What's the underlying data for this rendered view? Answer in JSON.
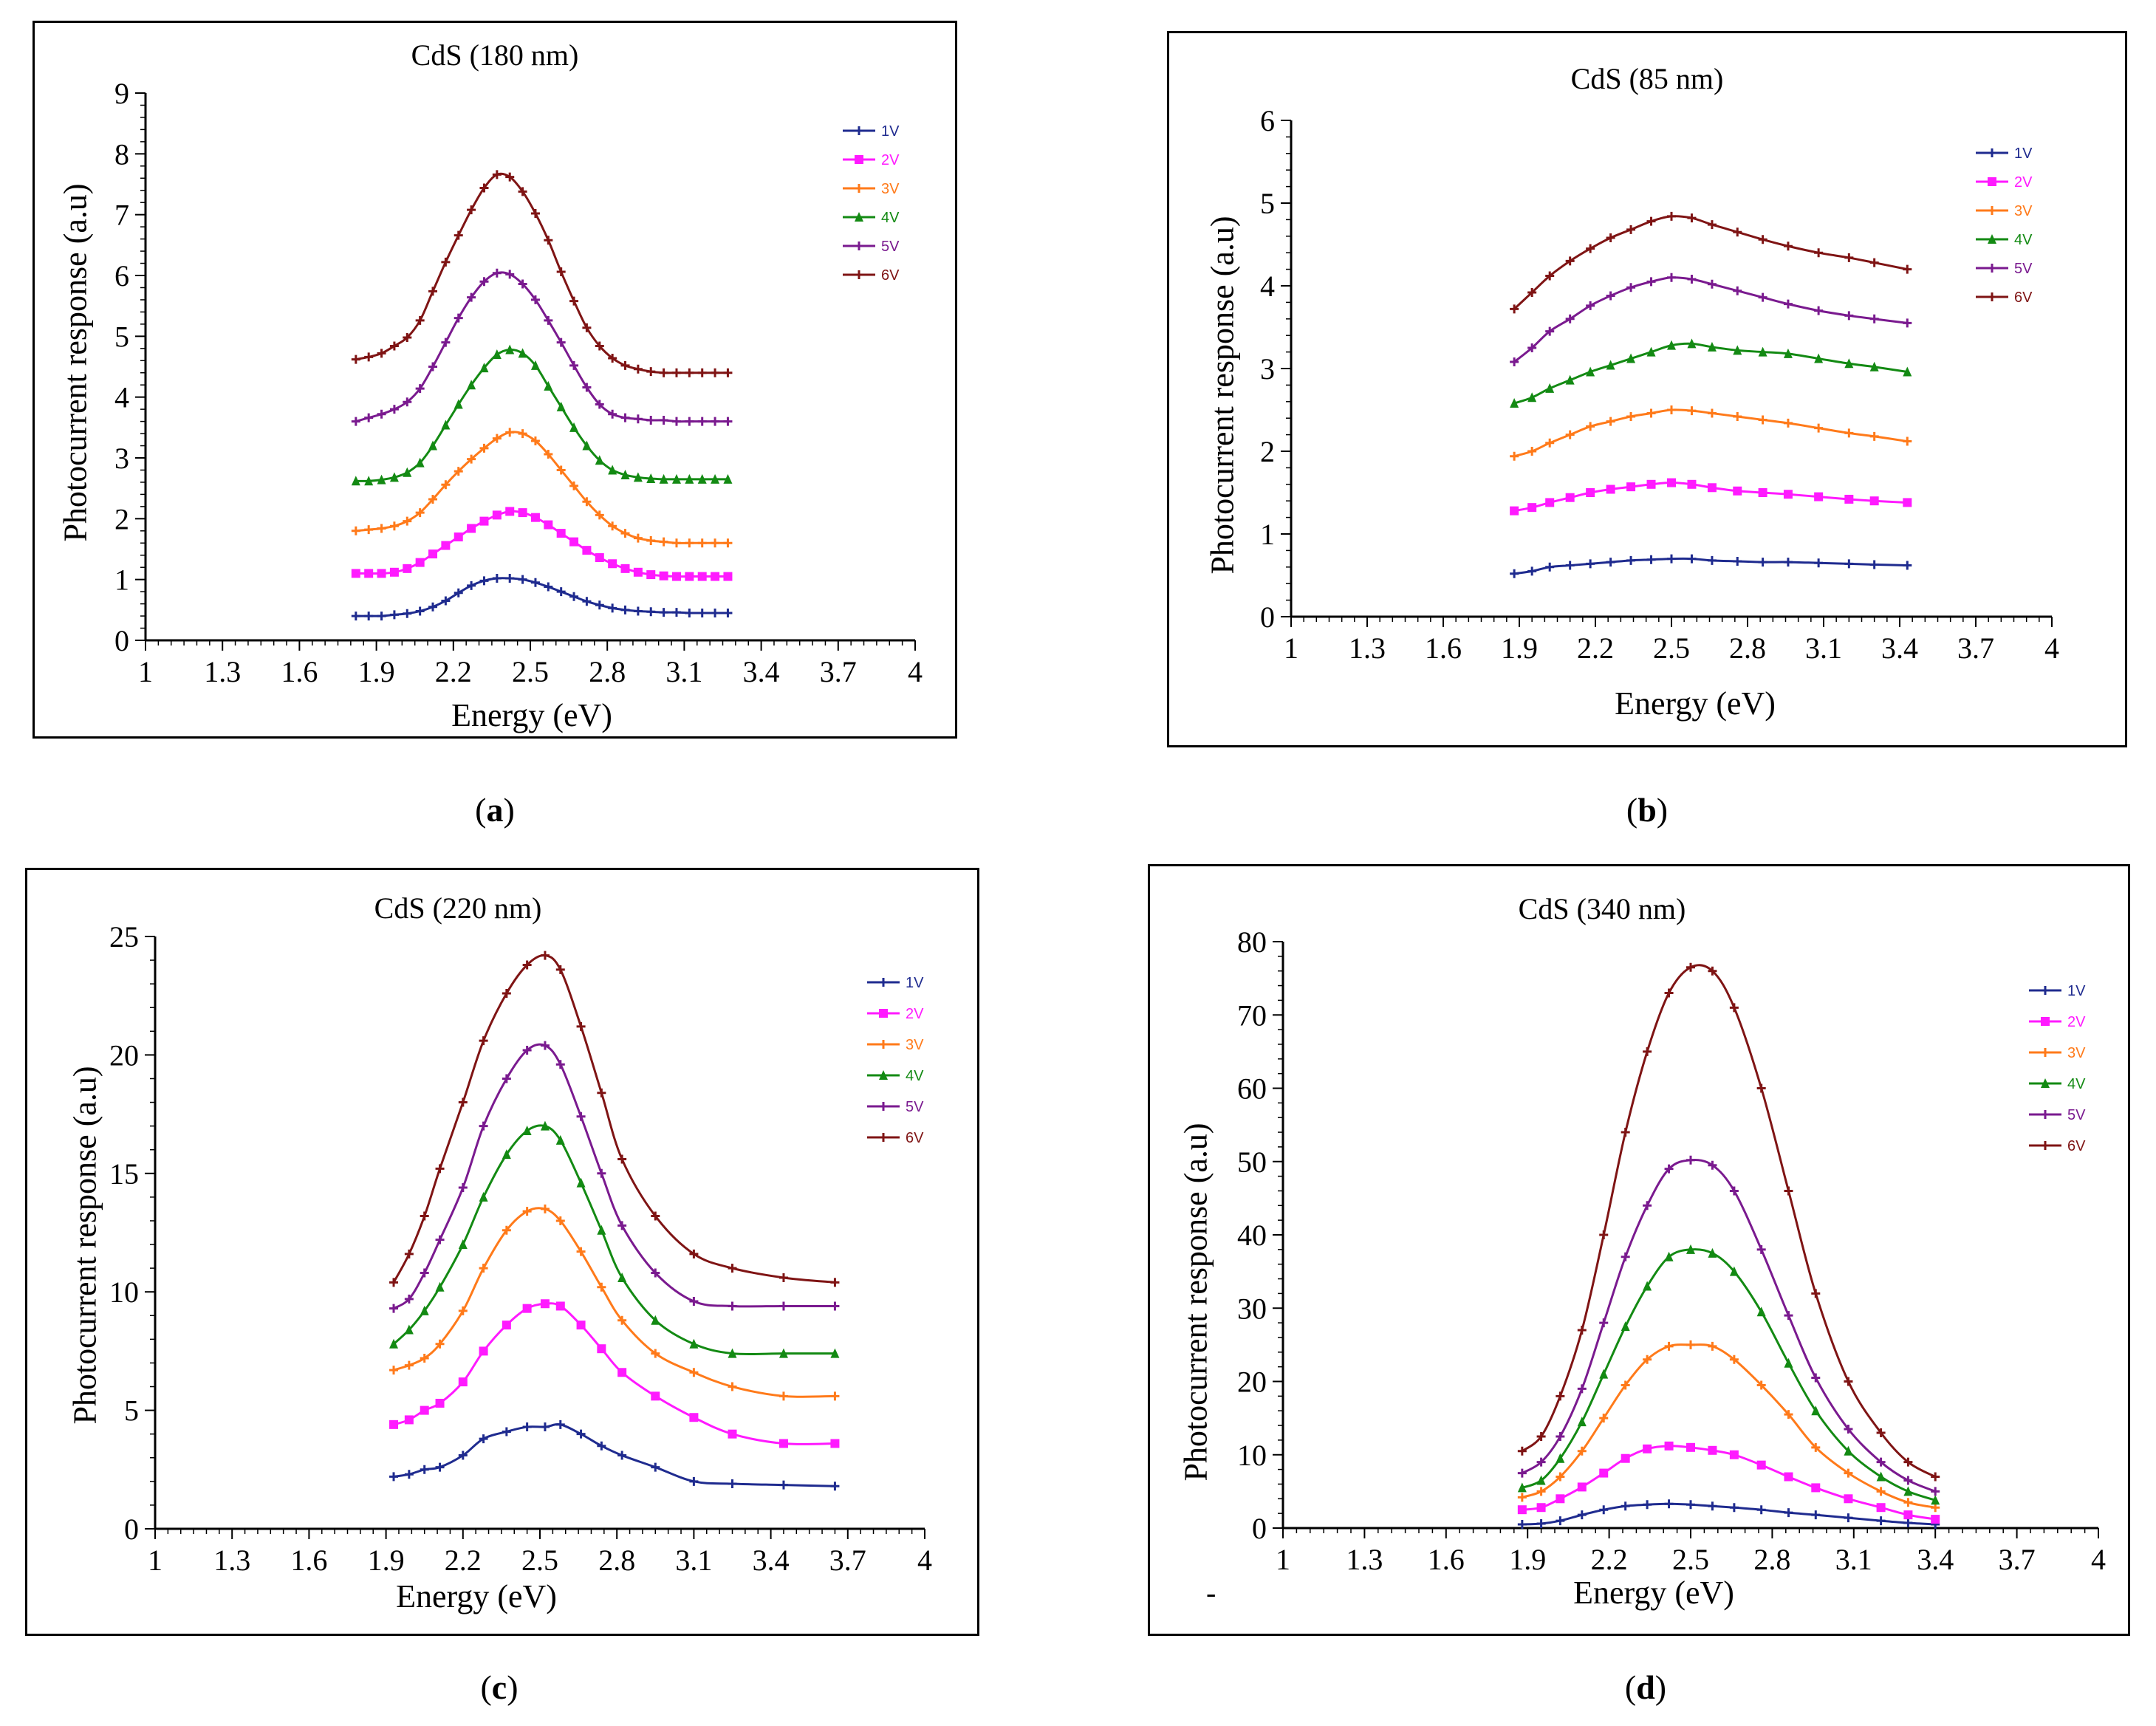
{
  "figure": {
    "panels": [
      {
        "caption_open": "(",
        "caption_letter": "a",
        "caption_close": ")",
        "ylabel": "Photocurrent response (a.u)",
        "xlabel": "Energy (eV)",
        "chart_data": {
          "type": "line",
          "title": "CdS (180 nm)",
          "xlabel": "Energy (eV)",
          "ylabel": "Photocurrent response (a.u)",
          "xlim": [
            1,
            4
          ],
          "ylim": [
            0,
            9
          ],
          "xticks": [
            "1",
            "1.3",
            "1.6",
            "1.9",
            "2.2",
            "2.5",
            "2.8",
            "3.1",
            "3.4",
            "3.7",
            "4"
          ],
          "yticks": [
            "0",
            "1",
            "2",
            "3",
            "4",
            "5",
            "6",
            "7",
            "8",
            "9"
          ],
          "grid": false,
          "legend_position": "top-right",
          "x": [
            1.82,
            1.87,
            1.92,
            1.97,
            2.02,
            2.07,
            2.12,
            2.17,
            2.22,
            2.27,
            2.32,
            2.37,
            2.42,
            2.47,
            2.52,
            2.57,
            2.62,
            2.67,
            2.72,
            2.77,
            2.82,
            2.87,
            2.92,
            2.97,
            3.02,
            3.07,
            3.12,
            3.17,
            3.22,
            3.27
          ],
          "series": [
            {
              "name": "1V",
              "color": "#1f2b8f",
              "values": [
                0.4,
                0.4,
                0.4,
                0.42,
                0.44,
                0.48,
                0.55,
                0.65,
                0.78,
                0.9,
                0.98,
                1.02,
                1.02,
                1.0,
                0.95,
                0.88,
                0.8,
                0.72,
                0.64,
                0.58,
                0.53,
                0.5,
                0.48,
                0.47,
                0.46,
                0.46,
                0.45,
                0.45,
                0.45,
                0.45
              ]
            },
            {
              "name": "2V",
              "color": "#ff1aff",
              "values": [
                1.1,
                1.1,
                1.1,
                1.12,
                1.18,
                1.28,
                1.42,
                1.56,
                1.7,
                1.84,
                1.96,
                2.06,
                2.12,
                2.1,
                2.02,
                1.9,
                1.76,
                1.62,
                1.48,
                1.36,
                1.26,
                1.18,
                1.12,
                1.08,
                1.06,
                1.05,
                1.05,
                1.05,
                1.05,
                1.05
              ]
            },
            {
              "name": "3V",
              "color": "#ff7a1a",
              "values": [
                1.8,
                1.82,
                1.84,
                1.88,
                1.96,
                2.1,
                2.32,
                2.56,
                2.78,
                2.98,
                3.16,
                3.32,
                3.42,
                3.4,
                3.28,
                3.06,
                2.8,
                2.54,
                2.28,
                2.06,
                1.88,
                1.76,
                1.68,
                1.64,
                1.62,
                1.6,
                1.6,
                1.6,
                1.6,
                1.6
              ]
            },
            {
              "name": "4V",
              "color": "#138a13",
              "values": [
                2.62,
                2.62,
                2.64,
                2.68,
                2.76,
                2.92,
                3.2,
                3.54,
                3.88,
                4.2,
                4.48,
                4.7,
                4.78,
                4.72,
                4.52,
                4.18,
                3.84,
                3.5,
                3.2,
                2.96,
                2.8,
                2.72,
                2.68,
                2.66,
                2.65,
                2.65,
                2.65,
                2.65,
                2.65,
                2.65
              ]
            },
            {
              "name": "5V",
              "color": "#7a1a8f",
              "values": [
                3.6,
                3.66,
                3.72,
                3.8,
                3.92,
                4.14,
                4.5,
                4.9,
                5.3,
                5.64,
                5.9,
                6.04,
                6.02,
                5.86,
                5.6,
                5.26,
                4.9,
                4.52,
                4.16,
                3.88,
                3.72,
                3.66,
                3.64,
                3.62,
                3.62,
                3.6,
                3.6,
                3.6,
                3.6,
                3.6
              ]
            },
            {
              "name": "6V",
              "color": "#7f1414",
              "values": [
                4.62,
                4.66,
                4.72,
                4.84,
                4.98,
                5.26,
                5.74,
                6.22,
                6.66,
                7.08,
                7.44,
                7.66,
                7.62,
                7.38,
                7.02,
                6.58,
                6.06,
                5.58,
                5.14,
                4.84,
                4.64,
                4.52,
                4.46,
                4.42,
                4.4,
                4.4,
                4.4,
                4.4,
                4.4,
                4.4
              ]
            }
          ]
        }
      },
      {
        "caption_open": "(",
        "caption_letter": "b",
        "caption_close": ")",
        "ylabel": "Photocurrent response (a.u)",
        "xlabel": "Energy (eV)",
        "chart_data": {
          "type": "line",
          "title": "CdS (85 nm)",
          "xlabel": "Energy (eV)",
          "ylabel": "Photocurrent response (a.u)",
          "xlim": [
            1,
            4
          ],
          "ylim": [
            0,
            6
          ],
          "xticks": [
            "1",
            "1.3",
            "1.6",
            "1.9",
            "2.2",
            "2.5",
            "2.8",
            "3.1",
            "3.4",
            "3.7",
            "4"
          ],
          "yticks": [
            "0",
            "1",
            "2",
            "3",
            "4",
            "5",
            "6"
          ],
          "grid": false,
          "legend_position": "top-right",
          "x": [
            1.88,
            1.95,
            2.02,
            2.1,
            2.18,
            2.26,
            2.34,
            2.42,
            2.5,
            2.58,
            2.66,
            2.76,
            2.86,
            2.96,
            3.08,
            3.2,
            3.3,
            3.43
          ],
          "series": [
            {
              "name": "1V",
              "color": "#1f2b8f",
              "values": [
                0.52,
                0.55,
                0.6,
                0.62,
                0.64,
                0.66,
                0.68,
                0.69,
                0.7,
                0.7,
                0.68,
                0.67,
                0.66,
                0.66,
                0.65,
                0.64,
                0.63,
                0.62
              ]
            },
            {
              "name": "2V",
              "color": "#ff1aff",
              "values": [
                1.28,
                1.32,
                1.38,
                1.44,
                1.5,
                1.54,
                1.57,
                1.6,
                1.62,
                1.6,
                1.56,
                1.52,
                1.5,
                1.48,
                1.45,
                1.42,
                1.4,
                1.38
              ]
            },
            {
              "name": "3V",
              "color": "#ff7a1a",
              "values": [
                1.94,
                2.0,
                2.1,
                2.2,
                2.3,
                2.36,
                2.42,
                2.46,
                2.5,
                2.49,
                2.46,
                2.42,
                2.38,
                2.34,
                2.28,
                2.22,
                2.18,
                2.12
              ]
            },
            {
              "name": "4V",
              "color": "#138a13",
              "values": [
                2.58,
                2.65,
                2.76,
                2.86,
                2.96,
                3.04,
                3.12,
                3.2,
                3.28,
                3.3,
                3.26,
                3.22,
                3.2,
                3.18,
                3.12,
                3.06,
                3.02,
                2.96
              ]
            },
            {
              "name": "5V",
              "color": "#7a1a8f",
              "values": [
                3.08,
                3.25,
                3.45,
                3.6,
                3.76,
                3.88,
                3.98,
                4.05,
                4.1,
                4.08,
                4.02,
                3.94,
                3.86,
                3.78,
                3.7,
                3.64,
                3.6,
                3.55
              ]
            },
            {
              "name": "6V",
              "color": "#7f1414",
              "values": [
                3.72,
                3.92,
                4.12,
                4.3,
                4.45,
                4.58,
                4.68,
                4.78,
                4.84,
                4.82,
                4.74,
                4.65,
                4.56,
                4.48,
                4.4,
                4.34,
                4.28,
                4.2
              ]
            }
          ]
        }
      },
      {
        "caption_open": "(",
        "caption_letter": "c",
        "caption_close": ")",
        "ylabel": "Photocurrent response (a.u)",
        "xlabel": "Energy (eV)",
        "chart_data": {
          "type": "line",
          "title": "CdS (220 nm)",
          "xlabel": "Energy (eV)",
          "ylabel": "Photocurrent response (a.u)",
          "xlim": [
            1,
            4
          ],
          "ylim": [
            0,
            25
          ],
          "xticks": [
            "1",
            "1.3",
            "1.6",
            "1.9",
            "2.2",
            "2.5",
            "2.8",
            "3.1",
            "3.4",
            "3.7",
            "4"
          ],
          "yticks": [
            "0",
            "5",
            "10",
            "15",
            "20",
            "25"
          ],
          "grid": false,
          "legend_position": "top-right",
          "x": [
            1.93,
            1.99,
            2.05,
            2.11,
            2.2,
            2.28,
            2.37,
            2.45,
            2.52,
            2.58,
            2.66,
            2.74,
            2.82,
            2.95,
            3.1,
            3.25,
            3.45,
            3.65
          ],
          "series": [
            {
              "name": "1V",
              "color": "#1f2b8f",
              "values": [
                2.2,
                2.3,
                2.5,
                2.6,
                3.1,
                3.8,
                4.1,
                4.3,
                4.3,
                4.4,
                4.0,
                3.5,
                3.1,
                2.6,
                2.0,
                1.9,
                1.85,
                1.8
              ]
            },
            {
              "name": "2V",
              "color": "#ff1aff",
              "values": [
                4.4,
                4.6,
                5.0,
                5.3,
                6.2,
                7.5,
                8.6,
                9.3,
                9.5,
                9.4,
                8.6,
                7.6,
                6.6,
                5.6,
                4.7,
                4.0,
                3.6,
                3.6
              ]
            },
            {
              "name": "3V",
              "color": "#ff7a1a",
              "values": [
                6.7,
                6.9,
                7.2,
                7.8,
                9.2,
                11.0,
                12.6,
                13.4,
                13.5,
                13.0,
                11.7,
                10.2,
                8.8,
                7.4,
                6.6,
                6.0,
                5.6,
                5.6
              ]
            },
            {
              "name": "4V",
              "color": "#138a13",
              "values": [
                7.8,
                8.4,
                9.2,
                10.2,
                12.0,
                14.0,
                15.8,
                16.8,
                17.0,
                16.4,
                14.6,
                12.6,
                10.6,
                8.8,
                7.8,
                7.4,
                7.4,
                7.4
              ]
            },
            {
              "name": "5V",
              "color": "#7a1a8f",
              "values": [
                9.3,
                9.7,
                10.8,
                12.2,
                14.4,
                17.0,
                19.0,
                20.2,
                20.4,
                19.6,
                17.4,
                15.0,
                12.8,
                10.8,
                9.6,
                9.4,
                9.4,
                9.4
              ]
            },
            {
              "name": "6V",
              "color": "#7f1414",
              "values": [
                10.4,
                11.6,
                13.2,
                15.2,
                18.0,
                20.6,
                22.6,
                23.8,
                24.2,
                23.6,
                21.2,
                18.4,
                15.6,
                13.2,
                11.6,
                11.0,
                10.6,
                10.4
              ]
            }
          ]
        }
      },
      {
        "caption_open": "(",
        "caption_letter": "d",
        "caption_close": ")",
        "ylabel": "Photocurrent response (a.u)",
        "xlabel": "Energy (eV)",
        "stray_mark": "-",
        "chart_data": {
          "type": "line",
          "title": "CdS (340 nm)",
          "xlabel": "Energy (eV)",
          "ylabel": "Photocurrent response (a.u)",
          "xlim": [
            1,
            4
          ],
          "ylim": [
            0,
            80
          ],
          "xticks": [
            "1",
            "1.3",
            "1.6",
            "1.9",
            "2.2",
            "2.5",
            "2.8",
            "3.1",
            "3.4",
            "3.7",
            "4"
          ],
          "yticks": [
            "0",
            "10",
            "20",
            "30",
            "40",
            "50",
            "60",
            "70",
            "80"
          ],
          "grid": false,
          "legend_position": "top-right",
          "x": [
            1.88,
            1.95,
            2.02,
            2.1,
            2.18,
            2.26,
            2.34,
            2.42,
            2.5,
            2.58,
            2.66,
            2.76,
            2.86,
            2.96,
            3.08,
            3.2,
            3.3,
            3.4
          ],
          "series": [
            {
              "name": "1V",
              "color": "#1f2b8f",
              "values": [
                0.5,
                0.6,
                1.0,
                1.8,
                2.5,
                3.0,
                3.2,
                3.3,
                3.2,
                3.0,
                2.8,
                2.5,
                2.1,
                1.8,
                1.4,
                1.0,
                0.7,
                0.5
              ]
            },
            {
              "name": "2V",
              "color": "#ff1aff",
              "values": [
                2.5,
                2.8,
                4.0,
                5.6,
                7.5,
                9.5,
                10.8,
                11.2,
                11.0,
                10.6,
                10.0,
                8.6,
                7.0,
                5.5,
                4.0,
                2.8,
                1.8,
                1.2
              ]
            },
            {
              "name": "3V",
              "color": "#ff7a1a",
              "values": [
                4.2,
                5.0,
                7.0,
                10.5,
                15.0,
                19.5,
                23.0,
                24.8,
                25.0,
                24.8,
                23.0,
                19.5,
                15.5,
                11.0,
                7.5,
                5.0,
                3.5,
                2.8
              ]
            },
            {
              "name": "4V",
              "color": "#138a13",
              "values": [
                5.5,
                6.5,
                9.5,
                14.5,
                21.0,
                27.5,
                33.0,
                37.0,
                38.0,
                37.5,
                35.0,
                29.5,
                22.5,
                16.0,
                10.5,
                7.0,
                5.0,
                3.8
              ]
            },
            {
              "name": "5V",
              "color": "#7a1a8f",
              "values": [
                7.5,
                9.0,
                12.5,
                19.0,
                28.0,
                37.0,
                44.0,
                49.0,
                50.2,
                49.5,
                46.0,
                38.0,
                29.0,
                20.5,
                13.5,
                9.0,
                6.5,
                5.0
              ]
            },
            {
              "name": "6V",
              "color": "#7f1414",
              "values": [
                10.5,
                12.5,
                18.0,
                27.0,
                40.0,
                54.0,
                65.0,
                73.0,
                76.5,
                76.0,
                71.0,
                60.0,
                46.0,
                32.0,
                20.0,
                13.0,
                9.0,
                7.0
              ]
            }
          ]
        }
      }
    ]
  }
}
